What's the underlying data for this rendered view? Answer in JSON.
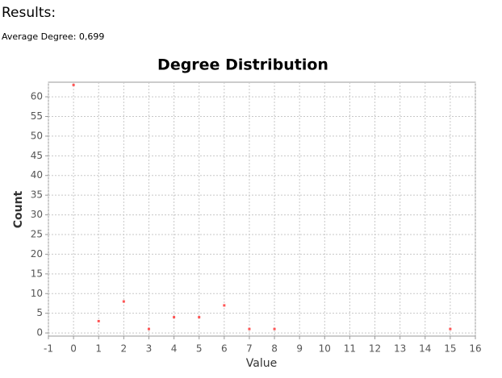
{
  "results_title": "Results:",
  "average_degree": "Average Degree: 0,699",
  "chart_data": {
    "type": "scatter",
    "title": "Degree Distribution",
    "x_label": "Value",
    "y_label": "Count",
    "x": [
      0,
      1,
      2,
      3,
      4,
      5,
      6,
      7,
      8,
      15
    ],
    "values": [
      63,
      3,
      8,
      1,
      4,
      4,
      7,
      1,
      1,
      1
    ],
    "color": "#ff5555",
    "xlim": [
      -1,
      16
    ],
    "ylim": [
      -0.8,
      63.7
    ],
    "xticks": [
      -1,
      0,
      1,
      2,
      3,
      4,
      5,
      6,
      7,
      8,
      9,
      10,
      11,
      12,
      13,
      14,
      15,
      16
    ],
    "yticks": [
      0,
      5,
      10,
      15,
      20,
      25,
      30,
      35,
      40,
      45,
      50,
      55,
      60
    ],
    "grid": true
  }
}
